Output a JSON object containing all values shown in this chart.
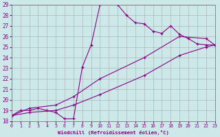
{
  "xlabel": "Windchill (Refroidissement éolien,°C)",
  "xlim": [
    0,
    23
  ],
  "ylim": [
    18,
    29
  ],
  "yticks": [
    18,
    19,
    20,
    21,
    22,
    23,
    24,
    25,
    26,
    27,
    28,
    29
  ],
  "xticks": [
    0,
    1,
    2,
    3,
    4,
    5,
    6,
    7,
    8,
    9,
    10,
    11,
    12,
    13,
    14,
    15,
    16,
    17,
    18,
    19,
    20,
    21,
    22,
    23
  ],
  "bg_color": "#cce8e8",
  "grid_color": "#aaaaaa",
  "line_color": "#880088",
  "line1_x": [
    0,
    1,
    2,
    3,
    4,
    5,
    6,
    7,
    8,
    9,
    10,
    11,
    12,
    13,
    14,
    15,
    16,
    17,
    18,
    19,
    20,
    21,
    22,
    23
  ],
  "line1_y": [
    18.5,
    19.0,
    19.0,
    19.2,
    19.0,
    18.8,
    18.2,
    18.2,
    23.1,
    25.2,
    29.0,
    29.5,
    29.0,
    28.0,
    27.3,
    27.2,
    26.5,
    26.3,
    27.0,
    26.2,
    25.8,
    25.3,
    25.2,
    25.2
  ],
  "line2_x": [
    0,
    2,
    5,
    7,
    10,
    15,
    19,
    22,
    23
  ],
  "line2_y": [
    18.5,
    19.2,
    19.5,
    20.3,
    22.0,
    24.0,
    26.0,
    25.8,
    25.2
  ],
  "line3_x": [
    0,
    2,
    5,
    7,
    10,
    15,
    19,
    22,
    23
  ],
  "line3_y": [
    18.5,
    18.8,
    19.0,
    19.5,
    20.5,
    22.3,
    24.2,
    25.0,
    25.2
  ]
}
